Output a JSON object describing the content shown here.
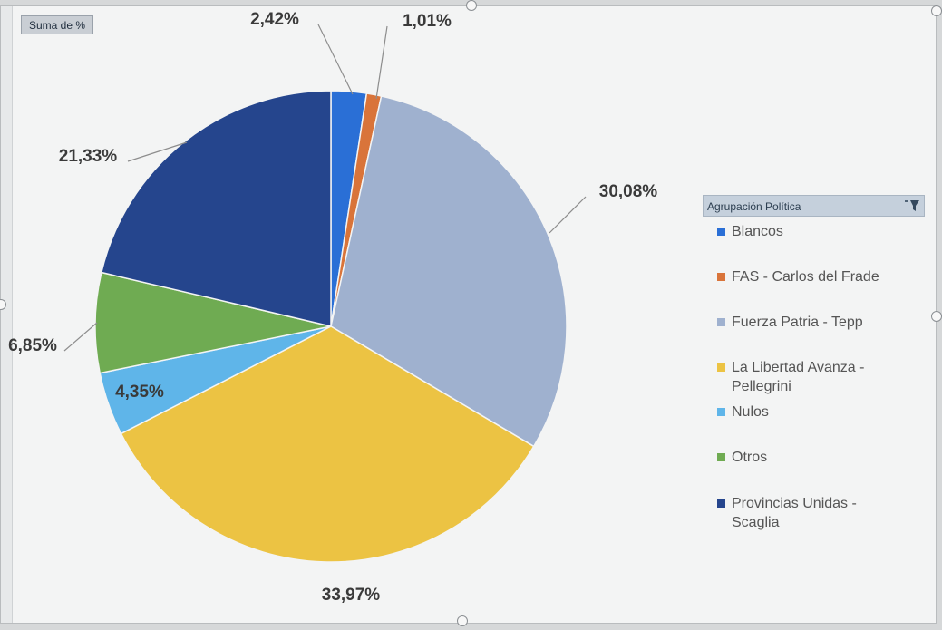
{
  "field_button": {
    "label": "Suma de %"
  },
  "legend_header": {
    "label": "Agrupación Política"
  },
  "chart_data": {
    "type": "pie",
    "categories": [
      "Blancos",
      "FAS - Carlos del Frade",
      "Fuerza Patria - Tepp",
      "La Libertad Avanza - Pellegrini",
      "Nulos",
      "Otros",
      "Provincias Unidas - Scaglia"
    ],
    "legend_lines": [
      [
        "Blancos"
      ],
      [
        "FAS - Carlos del Frade"
      ],
      [
        "Fuerza Patria - Tepp"
      ],
      [
        "La Libertad Avanza -",
        "Pellegrini"
      ],
      [
        "Nulos"
      ],
      [
        "Otros"
      ],
      [
        "Provincias Unidas -",
        "Scaglia"
      ]
    ],
    "values": [
      2.42,
      1.01,
      30.08,
      33.97,
      4.35,
      6.85,
      21.33
    ],
    "labels": [
      "2,42%",
      "1,01%",
      "30,08%",
      "33,97%",
      "4,35%",
      "6,85%",
      "21,33%"
    ],
    "colors": [
      "#2a6fd6",
      "#d9743a",
      "#9fb1cf",
      "#ecc343",
      "#5fb5e9",
      "#6fab52",
      "#25458d"
    ],
    "legend_placement": "right"
  }
}
